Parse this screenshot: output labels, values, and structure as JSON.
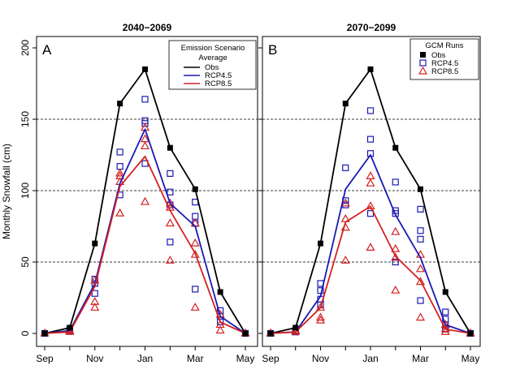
{
  "figure": {
    "ylabel": "Monthly Snowfall (cm)",
    "month_ticks": [
      "Sep",
      "Nov",
      "Jan",
      "Mar",
      "May"
    ],
    "y_ticks": [
      "0",
      "50",
      "100",
      "150",
      "200"
    ]
  },
  "chart_data": [
    {
      "type": "line",
      "panel_letter": "A",
      "title": "2040−2069",
      "xlabel": "",
      "ylabel": "Monthly Snowfall (cm)",
      "xlim": [
        "Sep",
        "May"
      ],
      "ylim": [
        0,
        200
      ],
      "y_ticks": [
        0,
        50,
        100,
        150,
        200
      ],
      "x_tick_labels": [
        "Sep",
        "Nov",
        "Jan",
        "Mar",
        "May"
      ],
      "gridlines_y": [
        50,
        100,
        150
      ],
      "categories": [
        "Sep",
        "Oct",
        "Nov",
        "Dec",
        "Jan",
        "Feb",
        "Mar",
        "Apr",
        "May"
      ],
      "legend": {
        "placement": "top-right",
        "title_lines": [
          "Emission Scenario",
          "Average"
        ],
        "entries": [
          "Obs",
          "RCP4.5",
          "RCP8.5"
        ]
      },
      "series": [
        {
          "name": "Obs",
          "color": "#000000",
          "marker": "square-filled",
          "values": [
            0,
            4,
            63,
            161,
            185,
            130,
            101,
            29,
            0
          ]
        },
        {
          "name": "RCP4.5",
          "color": "#1a1ab4",
          "values": [
            0,
            2,
            35,
            105,
            143,
            91,
            75,
            12,
            0
          ]
        },
        {
          "name": "RCP8.5",
          "color": "#d42020",
          "values": [
            0,
            1,
            33,
            103,
            124,
            86,
            56,
            8,
            0
          ]
        }
      ],
      "runs": [
        {
          "name": "RCP4.5",
          "color": "#1a1ab4",
          "marker": "open-square",
          "points": [
            [
              0,
              0
            ],
            [
              1,
              2
            ],
            [
              1,
              3
            ],
            [
              2,
              28
            ],
            [
              2,
              35
            ],
            [
              2,
              38
            ],
            [
              3,
              97
            ],
            [
              3,
              117
            ],
            [
              3,
              127
            ],
            [
              4,
              119
            ],
            [
              4,
              147
            ],
            [
              4,
              149
            ],
            [
              4,
              164
            ],
            [
              5,
              64
            ],
            [
              5,
              90
            ],
            [
              5,
              99
            ],
            [
              5,
              112
            ],
            [
              6,
              31
            ],
            [
              6,
              77
            ],
            [
              6,
              82
            ],
            [
              6,
              92
            ],
            [
              7,
              8
            ],
            [
              7,
              12
            ],
            [
              7,
              16
            ],
            [
              8,
              0
            ]
          ]
        },
        {
          "name": "RCP8.5",
          "color": "#d42020",
          "marker": "open-triangle",
          "points": [
            [
              0,
              0
            ],
            [
              1,
              1
            ],
            [
              1,
              2
            ],
            [
              2,
              18
            ],
            [
              2,
              22
            ],
            [
              2,
              37
            ],
            [
              3,
              84
            ],
            [
              3,
              106
            ],
            [
              3,
              110
            ],
            [
              3,
              112
            ],
            [
              4,
              92
            ],
            [
              4,
              131
            ],
            [
              4,
              136
            ],
            [
              4,
              144
            ],
            [
              5,
              51
            ],
            [
              5,
              77
            ],
            [
              5,
              88
            ],
            [
              5,
              91
            ],
            [
              6,
              18
            ],
            [
              6,
              55
            ],
            [
              6,
              63
            ],
            [
              6,
              77
            ],
            [
              7,
              2
            ],
            [
              7,
              6
            ],
            [
              7,
              13
            ],
            [
              8,
              0
            ]
          ]
        }
      ]
    },
    {
      "type": "line",
      "panel_letter": "B",
      "title": "2070−2099",
      "xlabel": "",
      "ylabel": "",
      "xlim": [
        "Sep",
        "May"
      ],
      "ylim": [
        0,
        200
      ],
      "y_ticks": [
        0,
        50,
        100,
        150,
        200
      ],
      "x_tick_labels": [
        "Sep",
        "Nov",
        "Jan",
        "Mar",
        "May"
      ],
      "gridlines_y": [
        50,
        100,
        150
      ],
      "categories": [
        "Sep",
        "Oct",
        "Nov",
        "Dec",
        "Jan",
        "Feb",
        "Mar",
        "Apr",
        "May"
      ],
      "legend": {
        "placement": "top-right",
        "title_lines": [
          "GCM Runs"
        ],
        "entries": [
          "Obs",
          "RCP4.5",
          "RCP8.5"
        ]
      },
      "series": [
        {
          "name": "Obs",
          "color": "#000000",
          "marker": "square-filled",
          "values": [
            0,
            4,
            63,
            161,
            185,
            130,
            101,
            29,
            0
          ]
        },
        {
          "name": "RCP4.5",
          "color": "#1a1ab4",
          "values": [
            0,
            1,
            26,
            101,
            125,
            83,
            53,
            6,
            0
          ]
        },
        {
          "name": "RCP8.5",
          "color": "#d42020",
          "values": [
            0,
            1,
            18,
            78,
            89,
            54,
            37,
            3,
            0
          ]
        }
      ],
      "runs": [
        {
          "name": "RCP4.5",
          "color": "#1a1ab4",
          "marker": "open-square",
          "points": [
            [
              0,
              0
            ],
            [
              1,
              1
            ],
            [
              1,
              2
            ],
            [
              2,
              20
            ],
            [
              2,
              24
            ],
            [
              2,
              30
            ],
            [
              2,
              35
            ],
            [
              3,
              90
            ],
            [
              3,
              93
            ],
            [
              3,
              116
            ],
            [
              4,
              84
            ],
            [
              4,
              126
            ],
            [
              4,
              136
            ],
            [
              4,
              156
            ],
            [
              5,
              50
            ],
            [
              5,
              84
            ],
            [
              5,
              86
            ],
            [
              5,
              106
            ],
            [
              6,
              23
            ],
            [
              6,
              66
            ],
            [
              6,
              72
            ],
            [
              6,
              87
            ],
            [
              7,
              3
            ],
            [
              7,
              6
            ],
            [
              7,
              10
            ],
            [
              7,
              15
            ],
            [
              8,
              0
            ]
          ]
        },
        {
          "name": "RCP8.5",
          "color": "#d42020",
          "marker": "open-triangle",
          "points": [
            [
              0,
              0
            ],
            [
              1,
              1
            ],
            [
              1,
              2
            ],
            [
              2,
              9
            ],
            [
              2,
              11
            ],
            [
              2,
              18
            ],
            [
              3,
              51
            ],
            [
              3,
              74
            ],
            [
              3,
              80
            ],
            [
              3,
              91
            ],
            [
              4,
              60
            ],
            [
              4,
              89
            ],
            [
              4,
              105
            ],
            [
              4,
              110
            ],
            [
              5,
              30
            ],
            [
              5,
              53
            ],
            [
              5,
              59
            ],
            [
              5,
              71
            ],
            [
              6,
              11
            ],
            [
              6,
              36
            ],
            [
              6,
              45
            ],
            [
              6,
              55
            ],
            [
              7,
              1
            ],
            [
              7,
              3
            ],
            [
              7,
              6
            ],
            [
              8,
              0
            ]
          ]
        }
      ]
    }
  ]
}
